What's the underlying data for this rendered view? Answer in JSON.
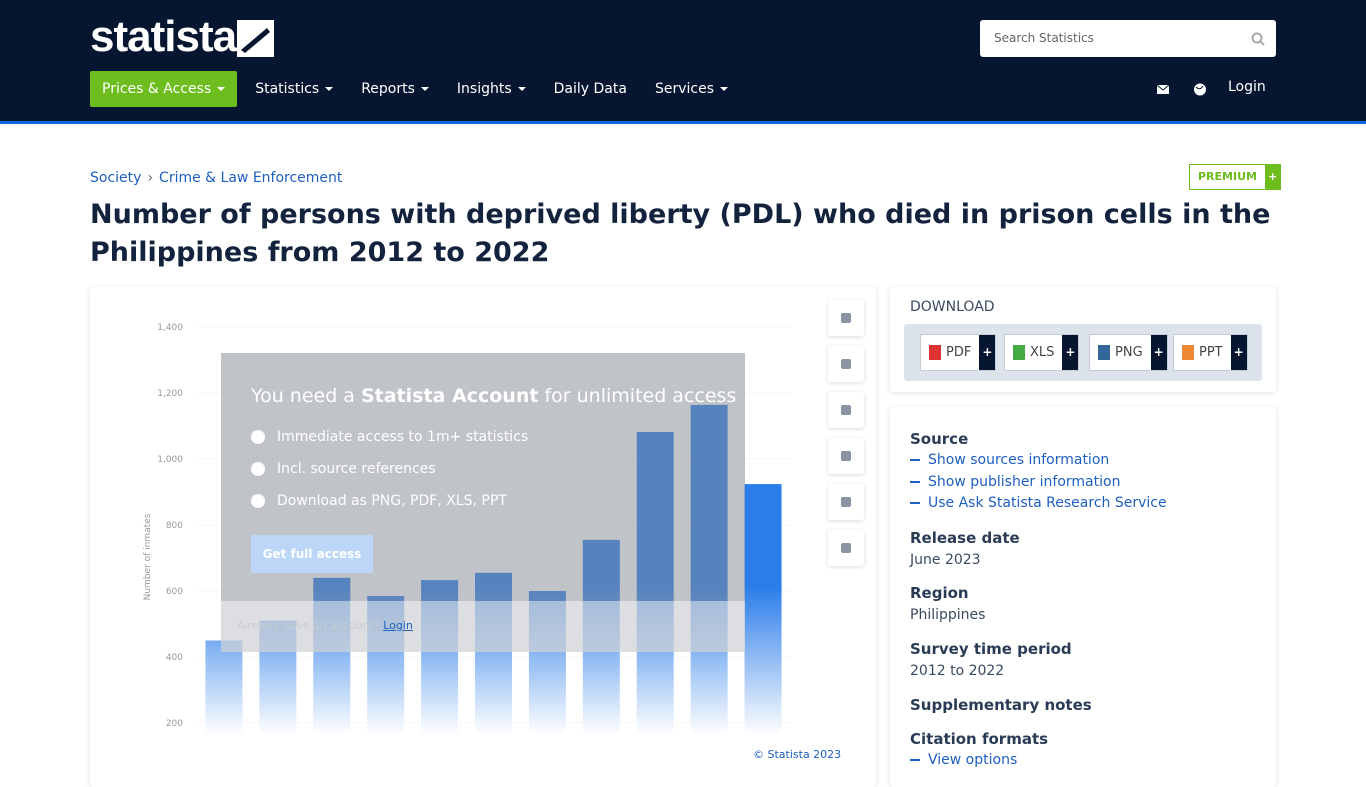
{
  "header": {
    "logo": "statista",
    "search_placeholder": "Search Statistics",
    "nav": [
      "Prices & Access",
      "Statistics",
      "Reports",
      "Insights",
      "Daily Data",
      "Services"
    ],
    "login": "Login"
  },
  "breadcrumb": [
    "Society",
    "Crime & Law Enforcement"
  ],
  "premium": {
    "label": "PREMIUM",
    "plus": "+"
  },
  "title": "Number of persons with deprived liberty (PDL) who died in prison cells in the Philippines from 2012 to 2022",
  "chart_data": {
    "type": "bar",
    "y_label": "Number of inmates",
    "color": "#2b7de9",
    "values": [
      450,
      510,
      640,
      585,
      633,
      655,
      600,
      755,
      1082,
      1164,
      924
    ],
    "ylim": [
      0,
      1400
    ],
    "yticks": [
      200,
      400,
      600,
      800,
      {
        "value": 1000,
        "label": "1,000"
      },
      {
        "value": 1200,
        "label": "1,200"
      },
      {
        "value": 1400,
        "label": "1,400"
      }
    ],
    "grid": true,
    "credit": "© Statista 2023"
  },
  "overlay": {
    "heading_pre": "You need a ",
    "heading_bold": "Statista Account",
    "heading_post": " for unlimited access",
    "bullets": [
      "Immediate access to 1m+ statistics",
      "Incl. source references",
      "Download as PNG, PDF, XLS, PPT"
    ],
    "button": "Get full access",
    "account_question": "Already have an account?",
    "login": "Login"
  },
  "download": {
    "title": "DOWNLOAD",
    "formats": [
      "PDF",
      "XLS",
      "PNG",
      "PPT"
    ],
    "plus": "+"
  },
  "details": {
    "source": {
      "label": "Source",
      "links": [
        "Show sources information",
        "Show publisher information",
        "Use Ask Statista Research Service"
      ]
    },
    "release": {
      "label": "Release date",
      "value": "June 2023"
    },
    "region": {
      "label": "Region",
      "value": "Philippines"
    },
    "period": {
      "label": "Survey time period",
      "value": "2012 to 2022"
    },
    "notes": {
      "label": "Supplementary notes"
    },
    "citation": {
      "label": "Citation formats",
      "link": "View options"
    }
  }
}
